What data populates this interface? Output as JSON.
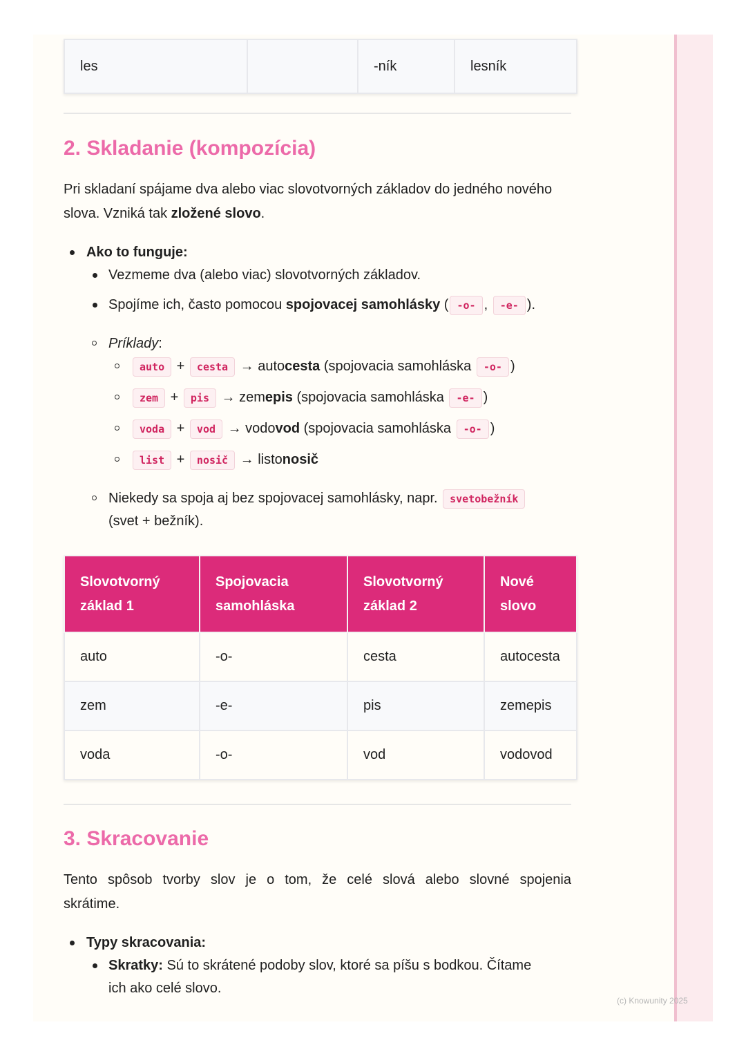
{
  "table_top": {
    "rows": [
      [
        "les",
        "",
        "-ník",
        "lesník"
      ]
    ]
  },
  "section2": {
    "heading": "2. Skladanie (kompozícia)",
    "para_line1": [
      {
        "t": "Pri skladaní spájame dva alebo viac slovotvorných základov do jedného nového"
      }
    ],
    "para_line2": [
      {
        "t": "slova. Vzniká tak "
      },
      {
        "b": "zložené slovo"
      },
      {
        "t": "."
      }
    ],
    "how": [
      {
        "b": "Ako to funguje:"
      }
    ],
    "how_1": [
      {
        "t": "Vezmeme dva (alebo viac) slovotvorných základov."
      }
    ],
    "how_2": [
      {
        "t": "Spojíme ich, často pomocou "
      },
      {
        "b": "spojovacej samohlásky"
      },
      {
        "t": " ("
      },
      {
        "c": "-o-"
      },
      {
        "t": ", "
      },
      {
        "c": "-e-"
      },
      {
        "t": ")."
      }
    ],
    "examples_label": [
      {
        "i": "Príklady"
      },
      {
        "t": ":"
      }
    ],
    "ex1": [
      {
        "c": "auto"
      },
      {
        "t": " + "
      },
      {
        "c": "cesta"
      },
      {
        "t": " → auto"
      },
      {
        "b": "cesta"
      },
      {
        "t": " (spojovacia samohláska "
      },
      {
        "c": "-o-"
      },
      {
        "t": ")"
      }
    ],
    "ex2": [
      {
        "c": "zem"
      },
      {
        "t": " + "
      },
      {
        "c": "pis"
      },
      {
        "t": " → zem"
      },
      {
        "b": "epis"
      },
      {
        "t": " (spojovacia samohláska "
      },
      {
        "c": "-e-"
      },
      {
        "t": ")"
      }
    ],
    "ex3": [
      {
        "c": "voda"
      },
      {
        "t": " + "
      },
      {
        "c": "vod"
      },
      {
        "t": " → vodo"
      },
      {
        "b": "vod"
      },
      {
        "t": " (spojovacia samohláska "
      },
      {
        "c": "-o-"
      },
      {
        "t": ")"
      }
    ],
    "ex4": [
      {
        "c": "list"
      },
      {
        "t": " + "
      },
      {
        "c": "nosič"
      },
      {
        "t": " → listo"
      },
      {
        "b": "nosič"
      }
    ],
    "note1": [
      {
        "t": "Niekedy sa spoja aj bez spojovacej samohlásky, napr. "
      },
      {
        "c": "svetobežník"
      }
    ],
    "note2": [
      {
        "t": "(svet + bežník)."
      }
    ],
    "table": {
      "headers": [
        [
          "Slovotvorný",
          "základ 1"
        ],
        [
          "Spojovacia",
          "samohláska"
        ],
        [
          "Slovotvorný",
          "základ 2"
        ],
        [
          "Nové",
          "slovo"
        ]
      ],
      "rows": [
        [
          "auto",
          "-o-",
          "cesta",
          "autocesta"
        ],
        [
          "zem",
          "-e-",
          "pis",
          "zemepis"
        ],
        [
          "voda",
          "-o-",
          "vod",
          "vodovod"
        ]
      ]
    }
  },
  "section3": {
    "heading": "3. Skracovanie",
    "para_line1": [
      {
        "t": "Tento spôsob tvorby slov je o tom, že celé slová alebo slovné spojenia"
      }
    ],
    "para_line2": [
      {
        "t": "skrátime."
      }
    ],
    "types": [
      {
        "b": "Typy skracovania:"
      }
    ],
    "types_1a": [
      {
        "b": "Skratky:"
      },
      {
        "t": " Sú to skrátené podoby slov, ktoré sa píšu s bodkou. Čítame"
      }
    ],
    "types_1b": [
      {
        "t": "ich ako celé slovo."
      }
    ]
  },
  "footer": "(c) Knowunity 2025",
  "colors": {
    "accent": "#dc2b7a",
    "heading": "#ec6aa9",
    "code": "#d0245f"
  }
}
